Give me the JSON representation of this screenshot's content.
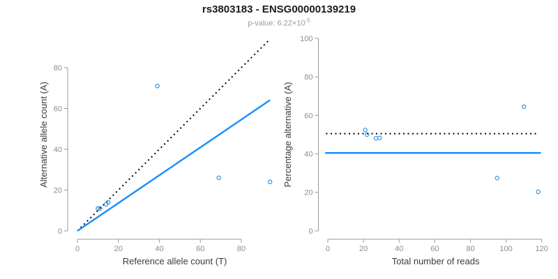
{
  "header": {
    "title": "rs3803183 - ENSG00000139219",
    "pvalue_label": "p-value: 6.22×10",
    "pvalue_exponent": "-5"
  },
  "colors": {
    "fit_line_blue": "#1E8FFF",
    "point_blue": "#3B97E0",
    "dotted_line_black": "#000000",
    "axis_gray": "#9a9a9a",
    "tick_label_gray": "#8c8c8c",
    "axis_label_dark": "#3b3b3b",
    "title_black": "#1b1b1b",
    "subtitle_gray": "#9b9b9b"
  },
  "chart_data": [
    {
      "type": "scatter",
      "name": "allele-counts-panel",
      "xlabel": "Reference allele count (T)",
      "ylabel": "Alternative allele count (A)",
      "xlim": [
        0,
        95
      ],
      "ylim": [
        0,
        94.5
      ],
      "xticks": [
        0,
        20,
        40,
        60,
        80
      ],
      "yticks": [
        0,
        20,
        40,
        60,
        80
      ],
      "grid": false,
      "legend": "none",
      "points": [
        [
          10,
          11
        ],
        [
          11,
          11
        ],
        [
          14,
          13
        ],
        [
          15,
          14
        ],
        [
          39,
          71
        ],
        [
          69,
          26
        ],
        [
          94,
          24
        ]
      ],
      "lines": [
        {
          "name": "identity-line",
          "meaning": "y = x",
          "style": "dotted",
          "color": "#000000",
          "x1": 0,
          "y1": 0,
          "x2": 94,
          "y2": 94
        },
        {
          "name": "fit-line",
          "meaning": "fitted allelic ratio",
          "style": "solid",
          "color": "#1E8FFF",
          "x1": 0,
          "y1": 0,
          "x2": 94,
          "y2": 64.1
        }
      ]
    },
    {
      "type": "scatter",
      "name": "percentage-panel",
      "xlabel": "Total number of reads",
      "ylabel": "Percentage alternative (A)",
      "xlim": [
        0,
        121
      ],
      "ylim": [
        0,
        100
      ],
      "xticks": [
        0,
        20,
        40,
        60,
        80,
        100,
        120
      ],
      "yticks": [
        0,
        20,
        40,
        60,
        80,
        100
      ],
      "grid": false,
      "legend": "none",
      "points": [
        [
          21,
          52.4
        ],
        [
          22,
          50
        ],
        [
          27,
          48.1
        ],
        [
          29,
          48.3
        ],
        [
          95,
          27.4
        ],
        [
          110,
          64.5
        ],
        [
          118,
          20.3
        ]
      ],
      "lines": [
        {
          "name": "fifty-percent-line",
          "meaning": "50% reference",
          "style": "dotted",
          "color": "#000000",
          "x1": -1,
          "y1": 50.5,
          "x2": 117.5,
          "y2": 50.5
        },
        {
          "name": "mean-percentage-line",
          "meaning": "overall alternative percentage",
          "style": "solid",
          "color": "#1E8FFF",
          "x1": -1.5,
          "y1": 40.5,
          "x2": 119.5,
          "y2": 40.5
        }
      ]
    }
  ]
}
